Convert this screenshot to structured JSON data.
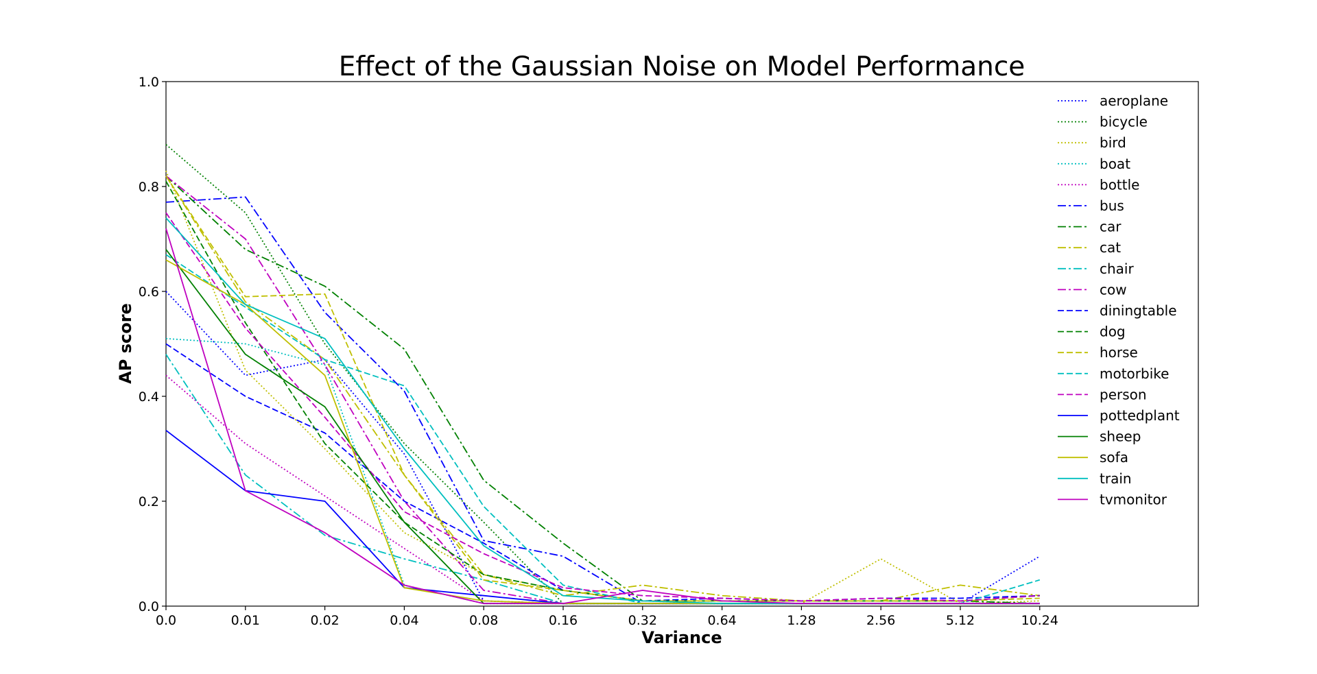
{
  "chart_data": {
    "type": "line",
    "title": "Effect of the Gaussian Noise on Model Performance",
    "xlabel": "Variance",
    "ylabel": "AP score",
    "x": [
      "0.0",
      "0.01",
      "0.02",
      "0.04",
      "0.08",
      "0.16",
      "0.32",
      "0.64",
      "1.28",
      "2.56",
      "5.12",
      "10.24"
    ],
    "ylim": [
      0.0,
      1.0
    ],
    "yticks": [
      "0.0",
      "0.2",
      "0.4",
      "0.6",
      "0.8",
      "1.0"
    ],
    "grid": false,
    "legend_position": "top-right",
    "series": [
      {
        "name": "aeroplane",
        "color": "#0000ff",
        "style": "dotted",
        "values": [
          0.6,
          0.44,
          0.47,
          0.29,
          0.01,
          0.005,
          0.005,
          0.005,
          0.005,
          0.005,
          0.005,
          0.095
        ]
      },
      {
        "name": "bicycle",
        "color": "#008000",
        "style": "dotted",
        "values": [
          0.88,
          0.75,
          0.5,
          0.31,
          0.16,
          0.005,
          0.005,
          0.005,
          0.005,
          0.005,
          0.005,
          0.005
        ]
      },
      {
        "name": "bird",
        "color": "#bfbf00",
        "style": "dotted",
        "values": [
          0.83,
          0.45,
          0.3,
          0.14,
          0.06,
          0.03,
          0.01,
          0.005,
          0.005,
          0.09,
          0.005,
          0.01
        ]
      },
      {
        "name": "boat",
        "color": "#00bfbf",
        "style": "dotted",
        "values": [
          0.51,
          0.5,
          0.46,
          0.04,
          0.005,
          0.005,
          0.005,
          0.005,
          0.005,
          0.005,
          0.005,
          0.005
        ]
      },
      {
        "name": "bottle",
        "color": "#bf00bf",
        "style": "dotted",
        "values": [
          0.44,
          0.31,
          0.21,
          0.11,
          0.01,
          0.005,
          0.005,
          0.005,
          0.005,
          0.005,
          0.005,
          0.005
        ]
      },
      {
        "name": "bus",
        "color": "#0000ff",
        "style": "dashdot",
        "values": [
          0.77,
          0.78,
          0.56,
          0.41,
          0.125,
          0.095,
          0.005,
          0.005,
          0.005,
          0.005,
          0.005,
          0.005
        ]
      },
      {
        "name": "car",
        "color": "#008000",
        "style": "dashdot",
        "values": [
          0.82,
          0.68,
          0.61,
          0.49,
          0.24,
          0.12,
          0.01,
          0.01,
          0.01,
          0.01,
          0.01,
          0.005
        ]
      },
      {
        "name": "cat",
        "color": "#bfbf00",
        "style": "dashdot",
        "values": [
          0.82,
          0.58,
          0.47,
          0.25,
          0.06,
          0.02,
          0.04,
          0.02,
          0.01,
          0.01,
          0.04,
          0.02
        ]
      },
      {
        "name": "chair",
        "color": "#00bfbf",
        "style": "dashdot",
        "values": [
          0.48,
          0.25,
          0.135,
          0.09,
          0.05,
          0.005,
          0.005,
          0.005,
          0.005,
          0.005,
          0.005,
          0.005
        ]
      },
      {
        "name": "cow",
        "color": "#bf00bf",
        "style": "dashdot",
        "values": [
          0.82,
          0.7,
          0.46,
          0.2,
          0.03,
          0.005,
          0.005,
          0.005,
          0.005,
          0.005,
          0.005,
          0.005
        ]
      },
      {
        "name": "diningtable",
        "color": "#0000ff",
        "style": "dashed",
        "values": [
          0.5,
          0.4,
          0.33,
          0.2,
          0.12,
          0.03,
          0.01,
          0.015,
          0.01,
          0.015,
          0.015,
          0.02
        ]
      },
      {
        "name": "dog",
        "color": "#008000",
        "style": "dashed",
        "values": [
          0.81,
          0.54,
          0.31,
          0.16,
          0.06,
          0.03,
          0.01,
          0.01,
          0.01,
          0.01,
          0.01,
          0.02
        ]
      },
      {
        "name": "horse",
        "color": "#bfbf00",
        "style": "dashed",
        "values": [
          0.82,
          0.59,
          0.595,
          0.25,
          0.05,
          0.03,
          0.01,
          0.01,
          0.01,
          0.01,
          0.01,
          0.015
        ]
      },
      {
        "name": "motorbike",
        "color": "#00bfbf",
        "style": "dashed",
        "values": [
          0.67,
          0.57,
          0.47,
          0.42,
          0.19,
          0.04,
          0.005,
          0.005,
          0.005,
          0.005,
          0.005,
          0.05
        ]
      },
      {
        "name": "person",
        "color": "#bf00bf",
        "style": "dashed",
        "values": [
          0.75,
          0.53,
          0.36,
          0.18,
          0.1,
          0.035,
          0.02,
          0.015,
          0.01,
          0.015,
          0.01,
          0.02
        ]
      },
      {
        "name": "pottedplant",
        "color": "#0000ff",
        "style": "solid",
        "values": [
          0.335,
          0.22,
          0.2,
          0.035,
          0.02,
          0.005,
          0.005,
          0.005,
          0.005,
          0.005,
          0.005,
          0.005
        ]
      },
      {
        "name": "sheep",
        "color": "#008000",
        "style": "solid",
        "values": [
          0.68,
          0.48,
          0.38,
          0.16,
          0.005,
          0.005,
          0.005,
          0.005,
          0.005,
          0.005,
          0.005,
          0.005
        ]
      },
      {
        "name": "sofa",
        "color": "#bfbf00",
        "style": "solid",
        "values": [
          0.66,
          0.575,
          0.44,
          0.035,
          0.01,
          0.005,
          0.005,
          0.005,
          0.005,
          0.005,
          0.005,
          0.005
        ]
      },
      {
        "name": "train",
        "color": "#00bfbf",
        "style": "solid",
        "values": [
          0.74,
          0.575,
          0.51,
          0.3,
          0.115,
          0.02,
          0.01,
          0.005,
          0.005,
          0.005,
          0.005,
          0.005
        ]
      },
      {
        "name": "tvmonitor",
        "color": "#bf00bf",
        "style": "solid",
        "values": [
          0.72,
          0.22,
          0.14,
          0.04,
          0.005,
          0.005,
          0.03,
          0.01,
          0.005,
          0.005,
          0.005,
          0.005
        ]
      }
    ]
  }
}
